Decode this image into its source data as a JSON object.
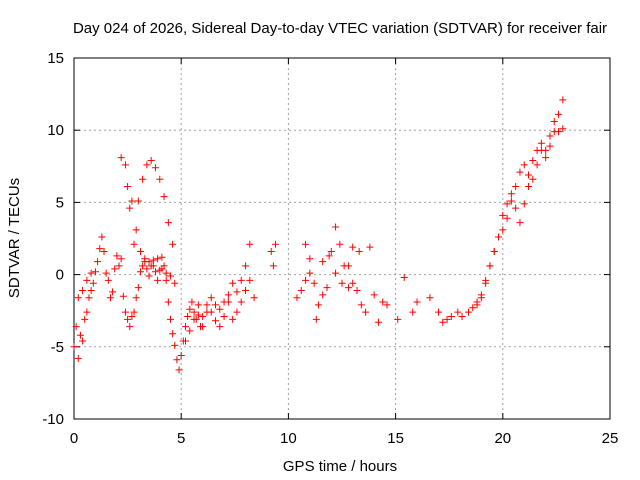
{
  "chart_data": {
    "type": "scatter",
    "title": "Day 024 of 2026, Sidereal Day-to-day VTEC variation (SDTVAR) for receiver fair",
    "xlabel": "GPS time / hours",
    "ylabel": "SDTVAR / TECUs",
    "xlim": [
      0,
      25
    ],
    "ylim": [
      -10,
      15
    ],
    "xticks": [
      0,
      5,
      10,
      15,
      20,
      25
    ],
    "yticks": [
      -10,
      -5,
      0,
      5,
      10,
      15
    ],
    "grid": true,
    "marker": "+",
    "series": [
      {
        "name": "SDTVAR",
        "color": "#ff0000",
        "x": [
          0.0,
          0.1,
          0.2,
          0.3,
          0.4,
          0.5,
          0.6,
          0.7,
          0.8,
          0.9,
          1.0,
          1.1,
          1.2,
          1.3,
          1.4,
          1.5,
          1.6,
          1.7,
          1.8,
          1.9,
          2.0,
          2.1,
          2.2,
          2.3,
          2.4,
          2.5,
          2.6,
          2.7,
          2.8,
          2.9,
          3.0,
          3.1,
          3.2,
          3.3,
          3.4,
          3.5,
          3.6,
          3.7,
          3.8,
          3.9,
          4.0,
          4.1,
          4.2,
          4.3,
          4.4,
          4.5,
          4.6,
          4.7,
          4.8,
          4.9,
          5.0,
          5.1,
          5.2,
          5.3,
          5.4,
          5.5,
          5.6,
          5.7,
          5.8,
          5.9,
          6.0,
          6.2,
          6.4,
          6.6,
          6.8,
          7.0,
          7.2,
          7.4,
          7.6,
          7.8,
          8.0,
          8.2,
          8.4,
          9.2,
          9.3,
          9.4,
          10.4,
          10.6,
          10.8,
          11.0,
          11.2,
          11.4,
          11.6,
          11.8,
          12.0,
          12.2,
          12.4,
          12.6,
          12.8,
          13.0,
          13.2,
          13.4,
          13.6,
          13.8,
          14.0,
          14.2,
          14.4,
          14.6,
          15.1,
          15.4,
          15.8,
          16.0,
          16.6,
          17.0,
          17.2,
          17.4,
          17.6,
          17.9,
          18.1,
          18.4,
          18.6,
          18.8,
          19.0,
          19.2,
          19.4,
          19.6,
          19.8,
          20.0,
          20.2,
          20.4,
          20.6,
          20.8,
          21.0,
          21.2,
          21.4,
          21.6,
          21.8,
          22.0,
          22.2,
          22.4,
          22.6,
          22.8,
          2.2,
          2.4,
          2.6,
          2.8,
          3.0,
          3.2,
          3.4,
          3.6,
          3.8,
          4.0,
          4.2,
          4.4,
          4.6,
          0.2,
          0.4,
          0.6,
          0.8,
          5.2,
          5.4,
          5.6,
          5.8,
          6.0,
          6.2,
          6.4,
          6.6,
          6.8,
          7.0,
          7.2,
          7.4,
          7.6,
          7.8,
          8.0,
          8.2,
          18.8,
          19.0,
          19.2,
          19.4,
          19.6,
          19.8,
          20.0,
          20.2,
          20.4,
          20.6,
          20.8,
          21.0,
          21.2,
          21.4,
          21.6,
          21.8,
          22.0,
          22.2,
          22.4,
          22.6,
          22.8,
          2.5,
          2.7,
          2.9,
          3.1,
          3.3,
          3.5,
          3.7,
          3.9,
          4.1,
          4.3,
          4.5,
          4.7,
          10.8,
          11.0,
          11.3,
          11.6,
          11.9,
          12.2,
          12.5,
          12.8,
          13.0,
          13.3
        ],
        "y": [
          -5.0,
          -3.6,
          -5.8,
          -4.2,
          -4.6,
          -3.1,
          -2.6,
          -1.6,
          -1.1,
          -0.6,
          0.2,
          0.9,
          1.8,
          2.6,
          1.6,
          0.1,
          -0.4,
          -1.6,
          -1.2,
          0.4,
          1.3,
          0.6,
          1.1,
          -1.5,
          -2.6,
          -3.1,
          -3.6,
          -2.9,
          -2.6,
          -1.6,
          -0.9,
          0.2,
          0.6,
          0.9,
          0.4,
          -0.1,
          0.6,
          1.0,
          0.2,
          -0.4,
          0.3,
          1.2,
          0.6,
          -0.4,
          -1.9,
          -3.1,
          -4.1,
          -4.9,
          -5.9,
          -6.6,
          -5.6,
          -4.6,
          -3.6,
          -2.9,
          -2.4,
          -1.9,
          -2.6,
          -3.1,
          -2.8,
          -3.6,
          -2.9,
          -2.1,
          -2.6,
          -3.2,
          -2.4,
          -1.9,
          -1.4,
          -0.6,
          -1.2,
          -0.4,
          0.6,
          2.1,
          -1.6,
          1.6,
          0.6,
          2.1,
          -1.6,
          -1.1,
          -0.4,
          1.1,
          -0.6,
          -2.1,
          -1.4,
          -0.9,
          1.6,
          3.3,
          2.1,
          0.6,
          -0.9,
          -0.6,
          -1.1,
          -2.1,
          -2.6,
          1.9,
          -1.4,
          -3.3,
          -1.9,
          -2.1,
          -3.1,
          -0.2,
          -2.6,
          -1.9,
          -1.6,
          -2.6,
          -3.3,
          -3.1,
          -2.9,
          -2.6,
          -2.9,
          -2.6,
          -2.3,
          -1.9,
          -1.6,
          -0.6,
          0.6,
          1.6,
          2.6,
          3.1,
          3.9,
          5.1,
          4.6,
          3.6,
          4.9,
          6.1,
          6.6,
          7.6,
          8.6,
          8.1,
          8.9,
          9.9,
          11.1,
          12.1,
          8.1,
          7.6,
          4.6,
          2.1,
          5.1,
          6.6,
          7.6,
          7.9,
          7.4,
          6.6,
          5.4,
          3.6,
          2.1,
          -1.6,
          -1.1,
          -0.4,
          0.1,
          -4.6,
          -3.9,
          -3.1,
          -2.1,
          -3.6,
          -2.6,
          -1.6,
          -2.1,
          -3.6,
          -2.9,
          -1.9,
          -3.1,
          -2.6,
          -1.9,
          -1.1,
          -0.4,
          -2.1,
          -1.4,
          -0.4,
          0.6,
          1.6,
          2.6,
          4.1,
          4.9,
          5.6,
          6.1,
          7.1,
          7.6,
          6.9,
          7.9,
          8.6,
          9.1,
          8.6,
          9.6,
          10.6,
          9.9,
          10.1,
          6.1,
          5.1,
          3.1,
          1.6,
          1.1,
          0.9,
          0.6,
          1.1,
          0.4,
          0.1,
          -0.1,
          -0.6,
          2.1,
          0.1,
          -3.1,
          0.9,
          1.3,
          0.1,
          -0.6,
          0.6,
          1.9,
          1.6
        ]
      }
    ]
  }
}
